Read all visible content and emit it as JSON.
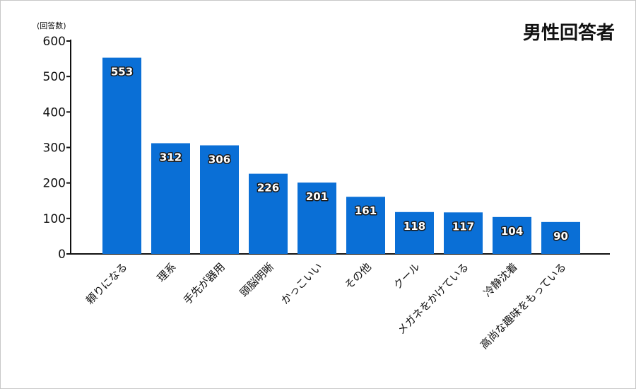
{
  "chart_data": {
    "type": "bar",
    "title": "男性回答者",
    "unit_label": "(回答数)",
    "categories": [
      "頼りになる",
      "理系",
      "手先が器用",
      "頭脳明晰",
      "かっこいい",
      "その他",
      "クール",
      "メガネをかけている",
      "冷静沈着",
      "高尚な趣味をもっている"
    ],
    "values": [
      553,
      312,
      306,
      226,
      201,
      161,
      118,
      117,
      104,
      90
    ],
    "ylim": [
      0,
      600
    ],
    "yticks": [
      0,
      100,
      200,
      300,
      400,
      500,
      600
    ],
    "bar_color": "#0a6fd6",
    "grid": false,
    "legend": "none"
  }
}
